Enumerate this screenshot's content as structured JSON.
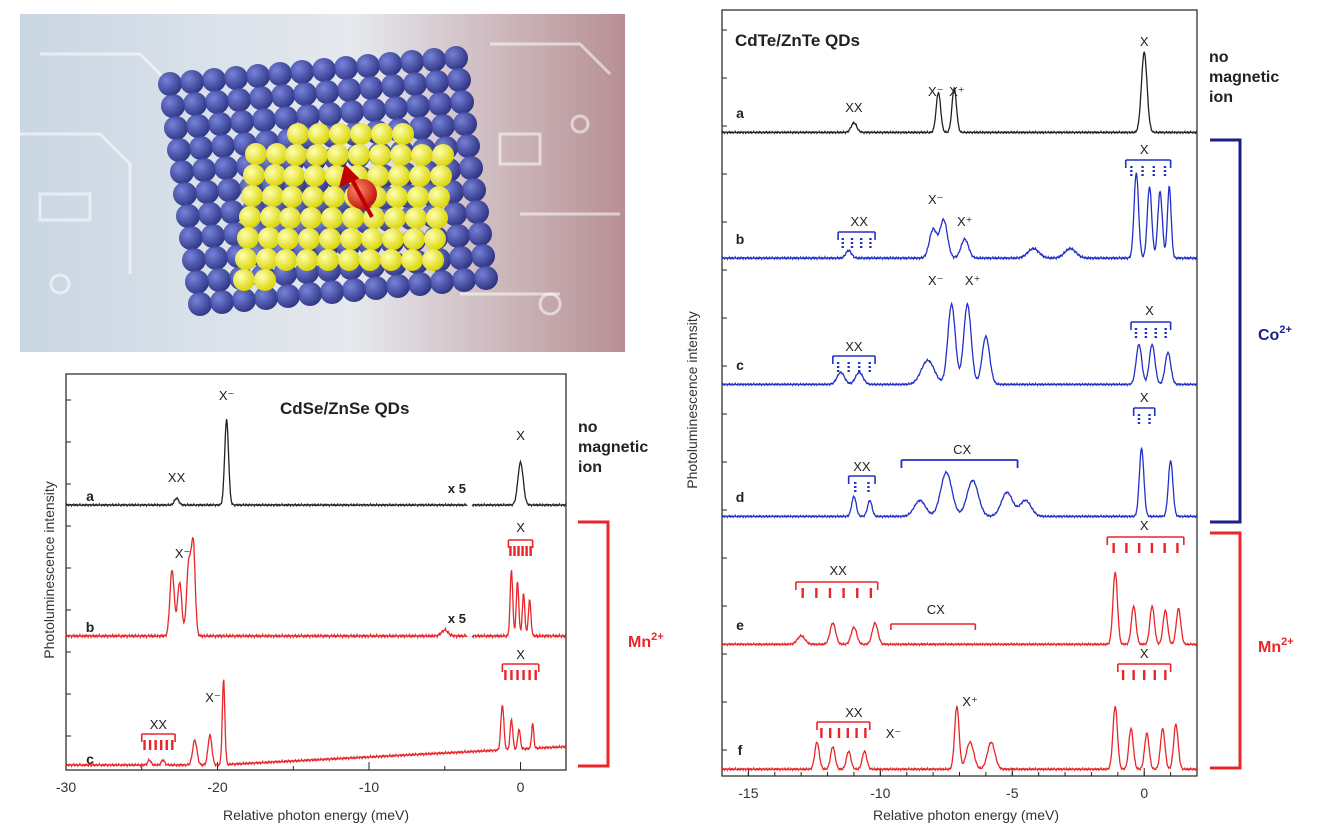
{
  "left_panel": {
    "title": "CdSe/ZnSe QDs",
    "ylabel": "Photoluminescence intensity",
    "xlabel": "Relative photon energy (meV)",
    "xticks": [
      "-30",
      "-20",
      "-10",
      "0"
    ],
    "xrange": [
      -30,
      3
    ],
    "no_magnetic_ion_label": "no\nmagnetic\nion",
    "bracket_label": "Mn",
    "bracket_sup": "2+",
    "colors": {
      "black": "#222222",
      "red": "#e8262a"
    },
    "traces": [
      {
        "id": "a",
        "label": "a",
        "color": "black",
        "annotations": [
          "XX",
          "X⁻",
          "X",
          "x 5"
        ]
      },
      {
        "id": "b",
        "label": "b",
        "color": "red",
        "annotations": [
          "X⁻",
          "X",
          "x 5"
        ]
      },
      {
        "id": "c",
        "label": "c",
        "color": "red",
        "annotations": [
          "XX",
          "X⁻",
          "X"
        ]
      }
    ]
  },
  "right_panel": {
    "title": "CdTe/ZnTe QDs",
    "ylabel": "Photoluminescence intensity",
    "xlabel": "Relative photon energy (meV)",
    "xticks": [
      "-15",
      "-10",
      "-5",
      "0"
    ],
    "xrange": [
      -16,
      2
    ],
    "no_magnetic_ion_label": "no\nmagnetic\nion",
    "co_label": "Co",
    "co_sup": "2+",
    "mn_label": "Mn",
    "mn_sup": "2+",
    "colors": {
      "black": "#222222",
      "blue": "#2230c8",
      "red": "#e8262a",
      "navy": "#1a1f8a"
    },
    "traces": [
      {
        "id": "a",
        "label": "a",
        "color": "black",
        "annotations": [
          "XX",
          "X⁻",
          "X⁺",
          "X"
        ]
      },
      {
        "id": "b",
        "label": "b",
        "color": "blue",
        "annotations": [
          "XX",
          "X⁻",
          "X⁺",
          "X"
        ]
      },
      {
        "id": "c",
        "label": "c",
        "color": "blue",
        "annotations": [
          "XX",
          "X⁻",
          "X⁺",
          "X"
        ]
      },
      {
        "id": "d",
        "label": "d",
        "color": "blue",
        "annotations": [
          "XX",
          "CX",
          "X"
        ]
      },
      {
        "id": "e",
        "label": "e",
        "color": "red",
        "annotations": [
          "XX",
          "CX",
          "X"
        ]
      },
      {
        "id": "f",
        "label": "f",
        "color": "red",
        "annotations": [
          "XX",
          "X⁻",
          "X⁺",
          "X"
        ]
      }
    ]
  },
  "illustration": {
    "shell_color": "#1f2a8c",
    "core_color": "#f2ee1c",
    "ion_color": "#e0261a"
  }
}
